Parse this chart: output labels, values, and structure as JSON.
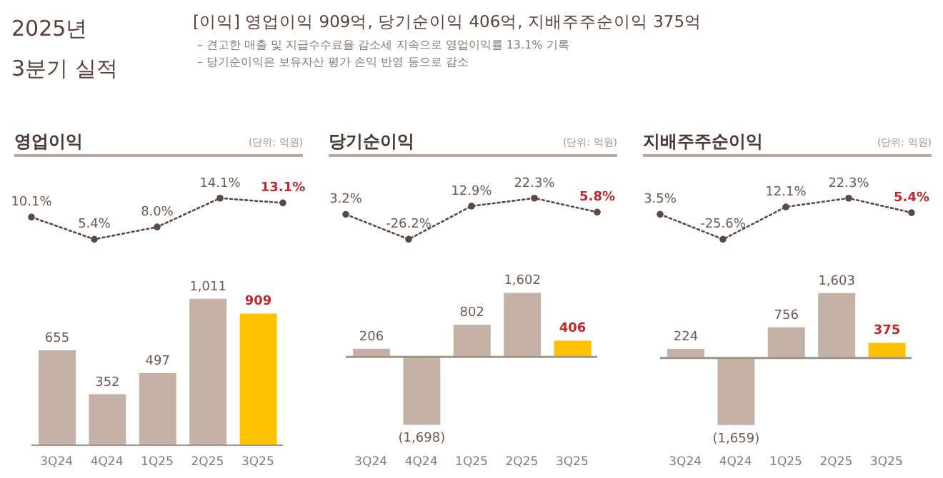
{
  "chart_data": [
    {
      "type": "other",
      "title": "2025년 3분기 실적",
      "subtitle": "[이익] 영업이익 909억,  당기순이익 406억, 지배주주순이익 375억",
      "annotations": [
        "– 견고한 매출 및 지급수수료율 감소세 지속으로 영업이익률 13.1% 기록",
        "– 당기순이익은 보유자산 평가 손익 반영 등으로 감소"
      ]
    },
    {
      "type": "line",
      "title": "영업이익",
      "annotations": [
        "(단위: 억원)"
      ],
      "categories": [
        null,
        null,
        null,
        null,
        null
      ],
      "tick_labels": false,
      "marker": "circle",
      "line_style": "dotted",
      "color": "#5a4a42",
      "values": [
        10.1,
        5.4,
        8.0,
        14.1,
        13.1
      ],
      "value_labels": [
        "10.1%",
        "5.4%",
        "8.0%",
        "14.1%",
        "13.1%"
      ]
    },
    {
      "type": "bar",
      "categories": [
        "3Q24",
        "4Q24",
        "1Q25",
        "2Q25",
        "3Q25"
      ],
      "tick_labels": "x",
      "colors": [
        "#c4b2a6",
        "#c4b2a6",
        "#c4b2a6",
        "#c4b2a6",
        "#ffc000"
      ],
      "values": [
        655,
        352,
        497,
        1011,
        909
      ],
      "value_labels": [
        "655",
        "352",
        "497",
        "1,011",
        "909"
      ]
    },
    {
      "type": "line",
      "title": "당기순이익",
      "annotations": [
        "(단위: 억원)"
      ],
      "categories": [
        null,
        null,
        null,
        null,
        null
      ],
      "tick_labels": false,
      "marker": "circle",
      "line_style": "dotted",
      "color": "#5a4a42",
      "values": [
        3.2,
        -26.2,
        12.9,
        22.3,
        5.8
      ],
      "value_labels": [
        "3.2%",
        "-26.2%",
        "12.9%",
        "22.3%",
        "5.8%"
      ]
    },
    {
      "type": "bar",
      "categories": [
        "3Q24",
        "4Q24",
        "1Q25",
        "2Q25",
        "3Q25"
      ],
      "tick_labels": "x",
      "colors": [
        "#c4b2a6",
        "#c4b2a6",
        "#c4b2a6",
        "#c4b2a6",
        "#ffc000"
      ],
      "values": [
        206,
        -1698,
        802,
        1602,
        406
      ],
      "value_labels": [
        "206",
        "(1,698)",
        "802",
        "1,602",
        "406"
      ]
    },
    {
      "type": "line",
      "title": "지배주주순이익",
      "annotations": [
        "(단위: 억원)"
      ],
      "categories": [
        null,
        null,
        null,
        null,
        null
      ],
      "tick_labels": false,
      "marker": "circle",
      "line_style": "dotted",
      "color": "#5a4a42",
      "values": [
        3.5,
        -25.6,
        12.1,
        22.3,
        5.4
      ],
      "value_labels": [
        "3.5%",
        "-25.6%",
        "12.1%",
        "22.3%",
        "5.4%"
      ]
    },
    {
      "type": "bar",
      "categories": [
        "3Q24",
        "4Q24",
        "1Q25",
        "2Q25",
        "3Q25"
      ],
      "tick_labels": "x",
      "colors": [
        "#c4b2a6",
        "#c4b2a6",
        "#c4b2a6",
        "#c4b2a6",
        "#ffc000"
      ],
      "values": [
        224,
        -1659,
        756,
        1603,
        375
      ],
      "value_labels": [
        "224",
        "(1,659)",
        "756",
        "1,603",
        "375"
      ]
    }
  ]
}
